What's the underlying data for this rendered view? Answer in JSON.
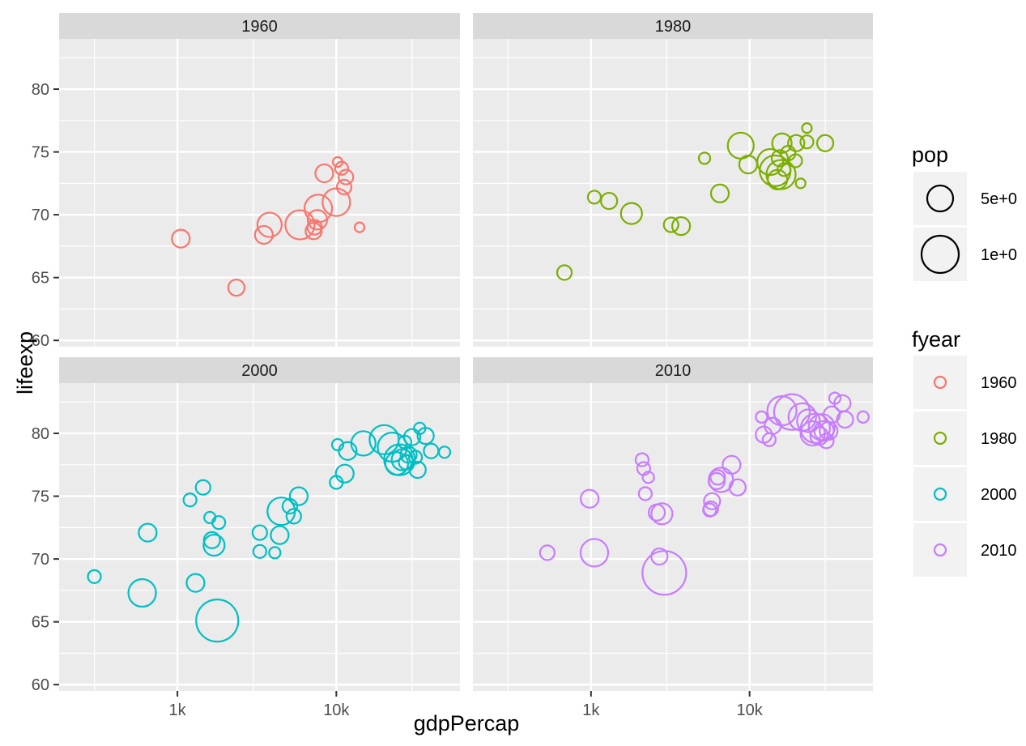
{
  "chart_data": {
    "type": "scatter",
    "x_variable": "gdpPercap",
    "y_variable": "lifeexp",
    "xlabel": "gdpPercap",
    "ylabel": "lifeexp",
    "x_scale": "log10",
    "xlim": [
      180,
      60000
    ],
    "ylim": [
      59.5,
      84
    ],
    "x_ticks": [
      {
        "value": 1000,
        "label": "1k"
      },
      {
        "value": 10000,
        "label": "10k"
      }
    ],
    "y_ticks": [
      60,
      65,
      70,
      75,
      80
    ],
    "grid": true,
    "facets": [
      {
        "label": "1960",
        "color": "#F8766D",
        "points": [
          {
            "x": 1050,
            "y": 68.1,
            "r": 11
          },
          {
            "x": 2350,
            "y": 64.2,
            "r": 10
          },
          {
            "x": 3500,
            "y": 68.4,
            "r": 11
          },
          {
            "x": 3800,
            "y": 69.2,
            "r": 15
          },
          {
            "x": 5900,
            "y": 69.2,
            "r": 18
          },
          {
            "x": 7200,
            "y": 68.7,
            "r": 10
          },
          {
            "x": 7300,
            "y": 69.0,
            "r": 9
          },
          {
            "x": 7600,
            "y": 69.6,
            "r": 12
          },
          {
            "x": 7700,
            "y": 70.5,
            "r": 17
          },
          {
            "x": 8400,
            "y": 73.3,
            "r": 11
          },
          {
            "x": 10000,
            "y": 71.0,
            "r": 17
          },
          {
            "x": 10200,
            "y": 74.2,
            "r": 6
          },
          {
            "x": 10800,
            "y": 73.7,
            "r": 8
          },
          {
            "x": 11500,
            "y": 73.0,
            "r": 9
          },
          {
            "x": 11200,
            "y": 72.2,
            "r": 9
          },
          {
            "x": 14000,
            "y": 69.0,
            "r": 6
          }
        ]
      },
      {
        "label": "1980",
        "color": "#7CAE00",
        "points": [
          {
            "x": 680,
            "y": 65.4,
            "r": 9
          },
          {
            "x": 1050,
            "y": 71.4,
            "r": 8
          },
          {
            "x": 1300,
            "y": 71.1,
            "r": 10
          },
          {
            "x": 1800,
            "y": 70.1,
            "r": 13
          },
          {
            "x": 3200,
            "y": 69.2,
            "r": 9
          },
          {
            "x": 3700,
            "y": 69.1,
            "r": 11
          },
          {
            "x": 5200,
            "y": 74.5,
            "r": 7
          },
          {
            "x": 6500,
            "y": 71.7,
            "r": 11
          },
          {
            "x": 8800,
            "y": 75.5,
            "r": 16
          },
          {
            "x": 9800,
            "y": 74.0,
            "r": 11
          },
          {
            "x": 13500,
            "y": 74.2,
            "r": 16
          },
          {
            "x": 14500,
            "y": 73.5,
            "r": 19
          },
          {
            "x": 15000,
            "y": 72.8,
            "r": 12
          },
          {
            "x": 15500,
            "y": 74.5,
            "r": 10
          },
          {
            "x": 15800,
            "y": 73.2,
            "r": 18
          },
          {
            "x": 16000,
            "y": 75.7,
            "r": 12
          },
          {
            "x": 16500,
            "y": 73.6,
            "r": 8
          },
          {
            "x": 17500,
            "y": 74.9,
            "r": 9
          },
          {
            "x": 19500,
            "y": 74.3,
            "r": 8
          },
          {
            "x": 19700,
            "y": 75.7,
            "r": 10
          },
          {
            "x": 21000,
            "y": 72.5,
            "r": 6
          },
          {
            "x": 23000,
            "y": 75.8,
            "r": 8
          },
          {
            "x": 23000,
            "y": 76.9,
            "r": 6
          },
          {
            "x": 30000,
            "y": 75.7,
            "r": 10
          }
        ]
      },
      {
        "label": "2000",
        "color": "#00BFC4",
        "points": [
          {
            "x": 300,
            "y": 68.6,
            "r": 8
          },
          {
            "x": 600,
            "y": 67.3,
            "r": 17
          },
          {
            "x": 650,
            "y": 72.1,
            "r": 11
          },
          {
            "x": 1200,
            "y": 74.7,
            "r": 8
          },
          {
            "x": 1300,
            "y": 68.1,
            "r": 11
          },
          {
            "x": 1450,
            "y": 75.7,
            "r": 9
          },
          {
            "x": 1600,
            "y": 73.3,
            "r": 7
          },
          {
            "x": 1650,
            "y": 71.5,
            "r": 10
          },
          {
            "x": 1700,
            "y": 71.1,
            "r": 13
          },
          {
            "x": 1780,
            "y": 65.1,
            "r": 26
          },
          {
            "x": 1820,
            "y": 72.9,
            "r": 8
          },
          {
            "x": 3300,
            "y": 72.1,
            "r": 9
          },
          {
            "x": 3300,
            "y": 70.6,
            "r": 8
          },
          {
            "x": 4100,
            "y": 70.5,
            "r": 7
          },
          {
            "x": 4400,
            "y": 71.9,
            "r": 11
          },
          {
            "x": 4500,
            "y": 73.8,
            "r": 17
          },
          {
            "x": 5100,
            "y": 74.2,
            "r": 9
          },
          {
            "x": 5400,
            "y": 73.4,
            "r": 9
          },
          {
            "x": 5800,
            "y": 75.0,
            "r": 11
          },
          {
            "x": 10000,
            "y": 76.1,
            "r": 8
          },
          {
            "x": 10200,
            "y": 79.1,
            "r": 7
          },
          {
            "x": 11300,
            "y": 76.8,
            "r": 11
          },
          {
            "x": 11800,
            "y": 78.6,
            "r": 11
          },
          {
            "x": 14800,
            "y": 79.2,
            "r": 15
          },
          {
            "x": 20000,
            "y": 79.5,
            "r": 18
          },
          {
            "x": 22500,
            "y": 78.9,
            "r": 18
          },
          {
            "x": 24000,
            "y": 77.6,
            "r": 14
          },
          {
            "x": 25000,
            "y": 77.9,
            "r": 19
          },
          {
            "x": 26000,
            "y": 77.9,
            "r": 13
          },
          {
            "x": 27000,
            "y": 79.3,
            "r": 8
          },
          {
            "x": 27500,
            "y": 77.7,
            "r": 9
          },
          {
            "x": 28500,
            "y": 78.3,
            "r": 10
          },
          {
            "x": 30000,
            "y": 79.7,
            "r": 10
          },
          {
            "x": 31500,
            "y": 78.1,
            "r": 8
          },
          {
            "x": 32500,
            "y": 77.1,
            "r": 10
          },
          {
            "x": 33500,
            "y": 80.4,
            "r": 7
          },
          {
            "x": 36500,
            "y": 79.8,
            "r": 10
          },
          {
            "x": 39500,
            "y": 78.6,
            "r": 9
          },
          {
            "x": 48000,
            "y": 78.5,
            "r": 7
          }
        ]
      },
      {
        "label": "2010",
        "color": "#C77CFF",
        "points": [
          {
            "x": 530,
            "y": 70.5,
            "r": 9
          },
          {
            "x": 980,
            "y": 74.8,
            "r": 11
          },
          {
            "x": 1050,
            "y": 70.5,
            "r": 17
          },
          {
            "x": 2100,
            "y": 77.9,
            "r": 8
          },
          {
            "x": 2150,
            "y": 77.2,
            "r": 8
          },
          {
            "x": 2200,
            "y": 75.2,
            "r": 8
          },
          {
            "x": 2300,
            "y": 76.5,
            "r": 7
          },
          {
            "x": 2600,
            "y": 73.7,
            "r": 10
          },
          {
            "x": 2700,
            "y": 70.2,
            "r": 10
          },
          {
            "x": 2800,
            "y": 73.6,
            "r": 13
          },
          {
            "x": 2900,
            "y": 68.9,
            "r": 27
          },
          {
            "x": 5600,
            "y": 73.9,
            "r": 8
          },
          {
            "x": 5700,
            "y": 74.0,
            "r": 9
          },
          {
            "x": 5800,
            "y": 74.6,
            "r": 10
          },
          {
            "x": 6200,
            "y": 76.2,
            "r": 10
          },
          {
            "x": 6300,
            "y": 76.5,
            "r": 9
          },
          {
            "x": 6600,
            "y": 76.3,
            "r": 15
          },
          {
            "x": 7700,
            "y": 77.5,
            "r": 11
          },
          {
            "x": 8400,
            "y": 75.7,
            "r": 10
          },
          {
            "x": 11900,
            "y": 81.3,
            "r": 7
          },
          {
            "x": 12300,
            "y": 79.9,
            "r": 10
          },
          {
            "x": 13300,
            "y": 79.5,
            "r": 8
          },
          {
            "x": 14000,
            "y": 80.6,
            "r": 10
          },
          {
            "x": 16000,
            "y": 81.8,
            "r": 18
          },
          {
            "x": 18500,
            "y": 81.7,
            "r": 22
          },
          {
            "x": 21500,
            "y": 81.3,
            "r": 17
          },
          {
            "x": 23500,
            "y": 81.0,
            "r": 14
          },
          {
            "x": 25000,
            "y": 80.0,
            "r": 15
          },
          {
            "x": 26000,
            "y": 80.4,
            "r": 18
          },
          {
            "x": 27500,
            "y": 79.8,
            "r": 11
          },
          {
            "x": 28500,
            "y": 80.5,
            "r": 16
          },
          {
            "x": 29500,
            "y": 80.2,
            "r": 12
          },
          {
            "x": 30500,
            "y": 79.4,
            "r": 9
          },
          {
            "x": 31500,
            "y": 80.2,
            "r": 11
          },
          {
            "x": 33000,
            "y": 81.5,
            "r": 10
          },
          {
            "x": 34500,
            "y": 82.8,
            "r": 7
          },
          {
            "x": 38500,
            "y": 82.4,
            "r": 10
          },
          {
            "x": 40000,
            "y": 81.1,
            "r": 10
          },
          {
            "x": 52000,
            "y": 81.3,
            "r": 7
          }
        ]
      }
    ],
    "legend": {
      "placement": "right",
      "size": {
        "title": "pop",
        "entries": [
          "5e+0",
          "1e+0"
        ]
      },
      "color": {
        "title": "fyear",
        "entries": [
          "1960",
          "1980",
          "2000",
          "2010"
        ]
      }
    }
  }
}
